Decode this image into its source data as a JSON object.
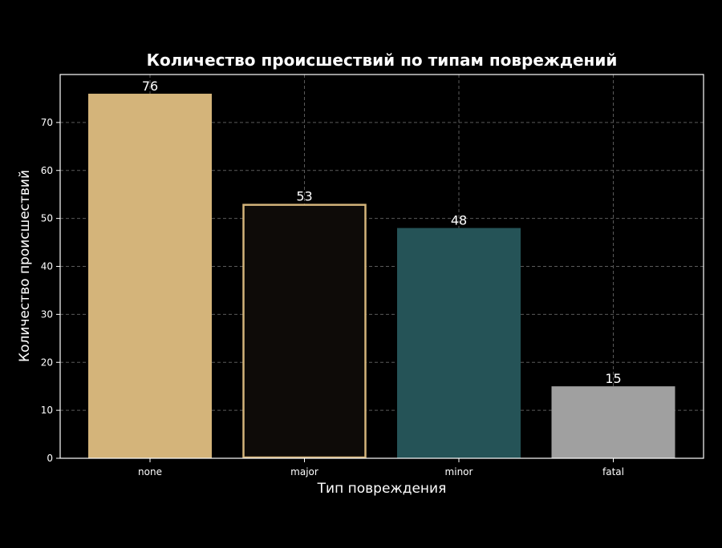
{
  "chart_data": {
    "type": "bar",
    "title": "Количество происшествий по типам повреждений",
    "xlabel": "Тип повреждения",
    "ylabel": "Количество происшествий",
    "categories": [
      "none",
      "major",
      "minor",
      "fatal"
    ],
    "values": [
      76,
      53,
      48,
      15
    ],
    "data_labels": [
      "76",
      "53",
      "48",
      "15"
    ],
    "bar_fills": [
      "#d4b47a",
      "#0e0b08",
      "#255357",
      "#a0a0a0"
    ],
    "bar_outline": [
      "",
      "#d4b47a",
      "",
      ""
    ],
    "ylim": [
      0,
      80
    ],
    "yticks": [
      0,
      10,
      20,
      30,
      40,
      50,
      60,
      70
    ],
    "grid": true,
    "background": "#000000"
  }
}
